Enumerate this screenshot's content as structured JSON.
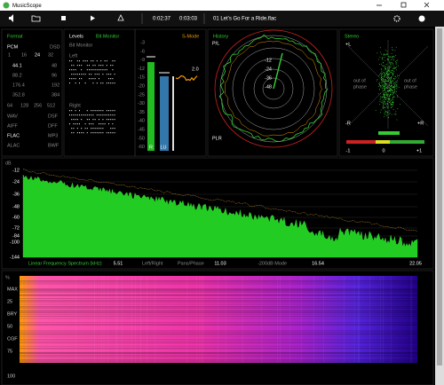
{
  "window": {
    "title": "MusicScope"
  },
  "toolbar": {
    "time_current": "0:02:37",
    "time_total": "0:03:03",
    "track": "01 Let's Go For a Ride.flac"
  },
  "format": {
    "title": "Format",
    "pcm": "PCM",
    "dsd": "DSD",
    "bits": [
      "1",
      "16",
      "24",
      "32"
    ],
    "rates": [
      [
        "44.1",
        "48"
      ],
      [
        "88.2",
        "96"
      ],
      [
        "176.4",
        "192"
      ],
      [
        "352.8",
        "384"
      ]
    ],
    "dsd_rates": [
      "64",
      "128",
      "256",
      "512"
    ],
    "containers": [
      [
        "WAV",
        "DSF"
      ],
      [
        "AIFF",
        "DFF"
      ],
      [
        "FLAC",
        "MP3"
      ],
      [
        "ALAC",
        "BWF"
      ]
    ]
  },
  "levels": {
    "title": "Levels",
    "bit_monitor": "Bit Monitor",
    "subtitle": "Bit Monitor",
    "left": "Left",
    "right": "Right"
  },
  "meter": {
    "mode": "S-Mode",
    "ticks": [
      "-3",
      "-6",
      "-9",
      "-12",
      "-15",
      "-20",
      "-25",
      "-30",
      "-35",
      "-40",
      "-45",
      "-50",
      "-60"
    ],
    "labels": [
      "R",
      "LU"
    ],
    "readout": "2.0"
  },
  "history": {
    "title": "History",
    "top_label": "P/L",
    "bottom_label": "PLR",
    "rings": [
      "-12",
      "-24",
      "-36",
      "-48"
    ]
  },
  "stereo": {
    "title": "Stereo",
    "top_left": "+L",
    "bottom_left": "-R",
    "bottom_right": "+R",
    "left_note": [
      "out of",
      "phase"
    ],
    "right_note": [
      "out of",
      "phase"
    ],
    "scale": [
      "-1",
      "0",
      "+1"
    ]
  },
  "spectrum": {
    "unit": "dB",
    "yticks": [
      "-12",
      "-24",
      "-36",
      "-48",
      "-60",
      "-72",
      "-84",
      "-100",
      "-144"
    ],
    "caption": "Linear Frequency Spectrum (kHz)",
    "xticks": [
      "5.51",
      "11.03",
      "16.54",
      "22.05"
    ],
    "modes": [
      "Left/Right",
      "Pans/Phase",
      "-200dB Mode"
    ]
  },
  "spectrogram": {
    "unit": "%",
    "ticks": [
      "MAX",
      "25",
      "BRY",
      "50",
      "CGF",
      "75",
      "100"
    ]
  }
}
